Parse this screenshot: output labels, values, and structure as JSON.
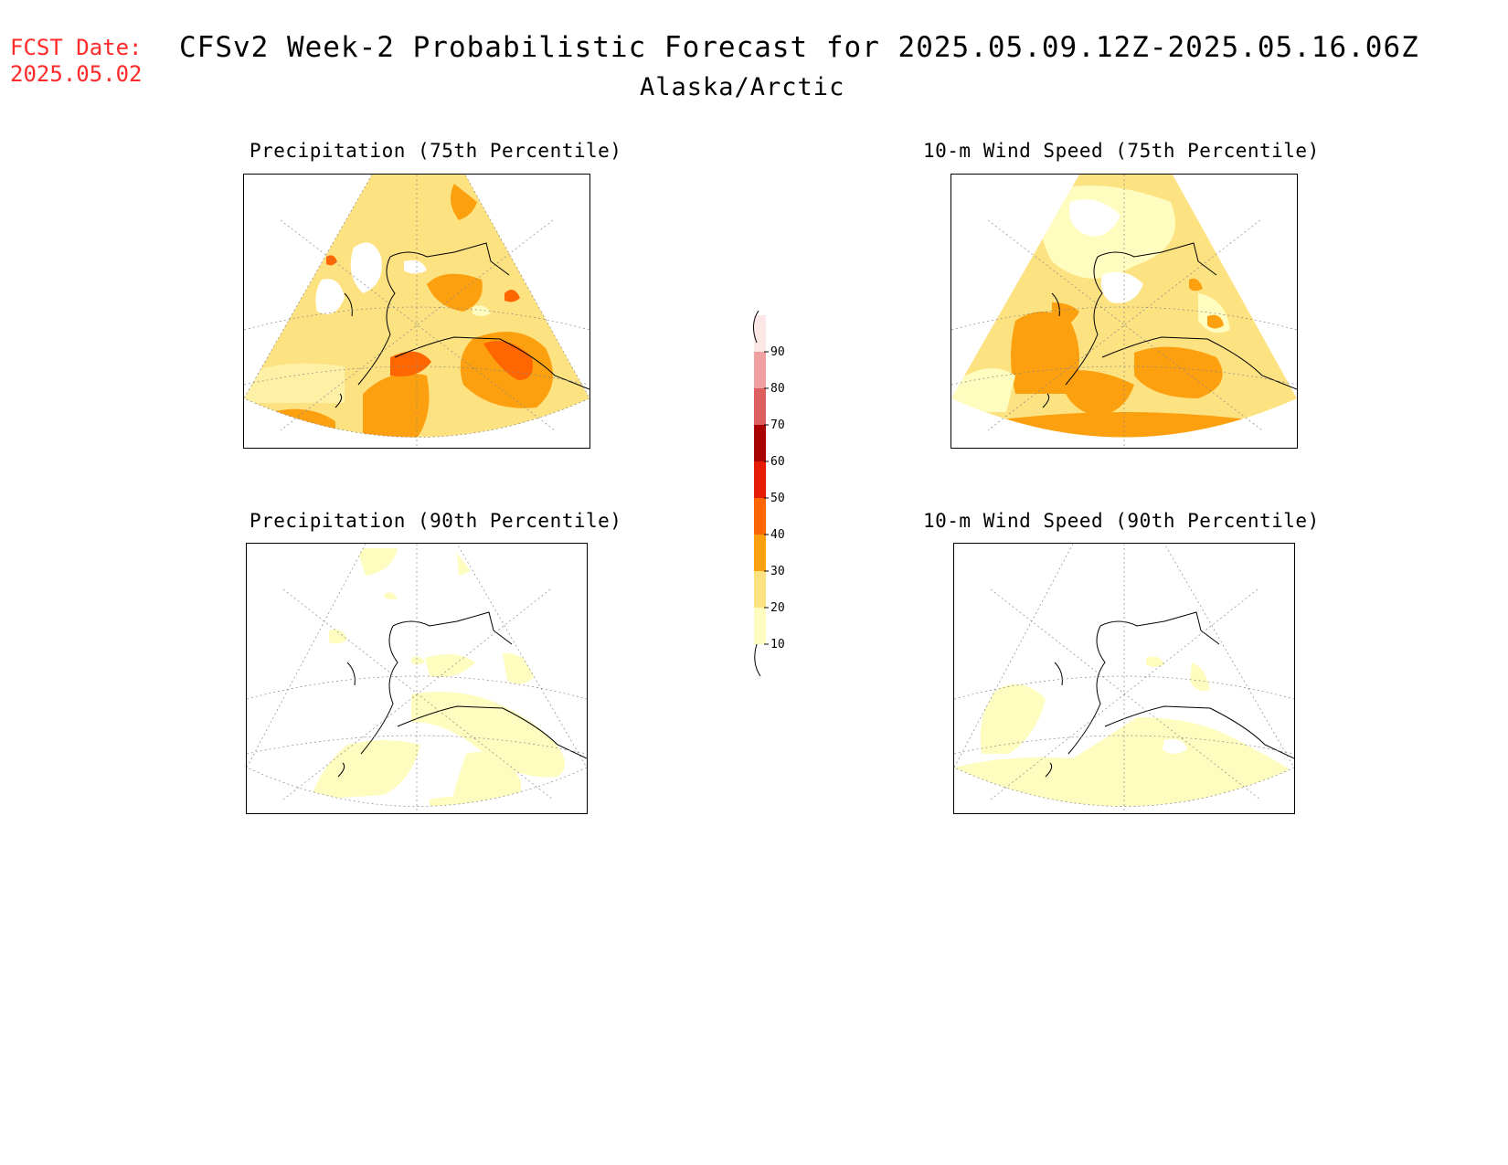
{
  "header": {
    "fcst_label": "FCST Date:",
    "fcst_date": "2025.05.02",
    "title": "CFSv2 Week-2 Probabilistic Forecast for 2025.05.09.12Z-2025.05.16.06Z",
    "subtitle": "Alaska/Arctic"
  },
  "panels": [
    {
      "title": "Precipitation (75th Percentile)"
    },
    {
      "title": "10-m Wind Speed (75th Percentile)"
    },
    {
      "title": "Precipitation (90th Percentile)"
    },
    {
      "title": "10-m Wind Speed (90th Percentile)"
    }
  ],
  "colorbar": {
    "levels": [
      "10",
      "20",
      "30",
      "40",
      "50",
      "60",
      "70",
      "80",
      "90"
    ],
    "colors": [
      "#fffcbf",
      "#fde281",
      "#fca010",
      "#ff6600",
      "#e51c00",
      "#a80000",
      "#dc6060",
      "#f0a0a0",
      "#fde6e6"
    ]
  }
}
